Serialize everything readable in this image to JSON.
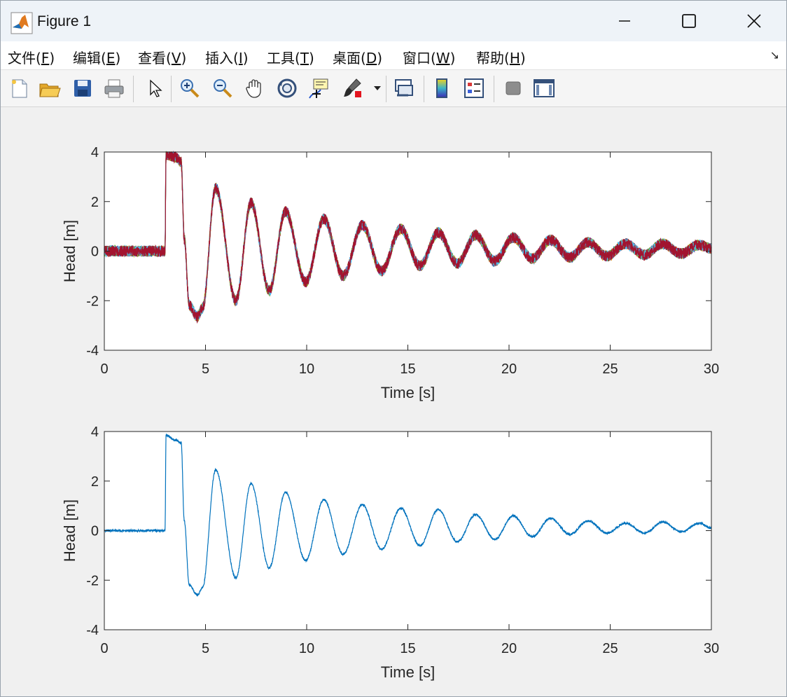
{
  "window": {
    "title": "Figure 1",
    "icon": "matlab-logo-icon",
    "controls": [
      "minimize-icon",
      "maximize-icon",
      "close-icon"
    ]
  },
  "menu": [
    {
      "label": "文件(",
      "accel": "F",
      "tail": ")"
    },
    {
      "label": "编辑(",
      "accel": "E",
      "tail": ")"
    },
    {
      "label": "查看(",
      "accel": "V",
      "tail": ")"
    },
    {
      "label": "插入(",
      "accel": "I",
      "tail": ")"
    },
    {
      "label": "工具(",
      "accel": "T",
      "tail": ")"
    },
    {
      "label": "桌面(",
      "accel": "D",
      "tail": ")"
    },
    {
      "label": "窗口(",
      "accel": "W",
      "tail": ")"
    },
    {
      "label": "帮助(",
      "accel": "H",
      "tail": ")"
    }
  ],
  "toolbar": [
    "new-figure-icon",
    "open-file-icon",
    "save-icon",
    "print-icon",
    "pointer-icon",
    "zoom-in-icon",
    "zoom-out-icon",
    "pan-hand-icon",
    "rotate-3d-icon",
    "data-cursor-icon",
    "brush-icon",
    "brush-dropdown-icon",
    "link-plot-icon",
    "colorbar-icon",
    "legend-icon",
    "hide-plot-tools-icon",
    "show-plot-tools-icon"
  ],
  "chart_data": [
    {
      "type": "line",
      "title": "",
      "xlabel": "Time [s]",
      "ylabel": "Head [m]",
      "xlim": [
        0,
        30
      ],
      "ylim": [
        -4,
        4
      ],
      "xticks": [
        0,
        5,
        10,
        15,
        20,
        25,
        30
      ],
      "yticks": [
        -4,
        -2,
        0,
        2,
        4
      ],
      "grid": false,
      "legend": "none",
      "colors": [
        "#0072BD",
        "#D95319",
        "#EDB120",
        "#7E2F8E",
        "#77AC30",
        "#4DBEEE",
        "#A2142F"
      ],
      "noise_amplitude": 0.22,
      "series_points": [
        [
          0,
          0.0
        ],
        [
          3.0,
          0.0
        ],
        [
          3.05,
          3.9
        ],
        [
          3.5,
          3.8
        ],
        [
          3.8,
          3.6
        ],
        [
          3.95,
          0.5
        ],
        [
          4.2,
          -2.2
        ],
        [
          4.6,
          -2.65
        ],
        [
          4.85,
          -2.3
        ],
        [
          5.5,
          2.55
        ],
        [
          6.5,
          -2.0
        ],
        [
          7.25,
          1.95
        ],
        [
          8.15,
          -1.6
        ],
        [
          8.95,
          1.6
        ],
        [
          9.95,
          -1.25
        ],
        [
          10.85,
          1.3
        ],
        [
          11.8,
          -1.0
        ],
        [
          12.75,
          1.05
        ],
        [
          13.7,
          -0.8
        ],
        [
          14.65,
          0.9
        ],
        [
          15.6,
          -0.6
        ],
        [
          16.5,
          0.75
        ],
        [
          17.45,
          -0.5
        ],
        [
          18.35,
          0.65
        ],
        [
          19.3,
          -0.4
        ],
        [
          20.2,
          0.55
        ],
        [
          21.15,
          -0.3
        ],
        [
          22.05,
          0.45
        ],
        [
          23.0,
          -0.25
        ],
        [
          23.9,
          0.35
        ],
        [
          24.85,
          -0.2
        ],
        [
          25.75,
          0.3
        ],
        [
          26.7,
          -0.15
        ],
        [
          27.6,
          0.3
        ],
        [
          28.5,
          -0.1
        ],
        [
          29.4,
          0.25
        ],
        [
          30,
          0.1
        ]
      ]
    },
    {
      "type": "line",
      "title": "",
      "xlabel": "Time [s]",
      "ylabel": "Head [m]",
      "xlim": [
        0,
        30
      ],
      "ylim": [
        -4,
        4
      ],
      "xticks": [
        0,
        5,
        10,
        15,
        20,
        25,
        30
      ],
      "yticks": [
        -4,
        -2,
        0,
        2,
        4
      ],
      "grid": false,
      "legend": "none",
      "colors": [
        "#0072BD"
      ],
      "noise_amplitude": 0.04,
      "series_points": [
        [
          0,
          0.0
        ],
        [
          3.0,
          0.0
        ],
        [
          3.05,
          3.85
        ],
        [
          3.5,
          3.65
        ],
        [
          3.8,
          3.55
        ],
        [
          3.95,
          0.4
        ],
        [
          4.2,
          -2.2
        ],
        [
          4.6,
          -2.6
        ],
        [
          4.85,
          -2.3
        ],
        [
          5.5,
          2.45
        ],
        [
          6.5,
          -1.9
        ],
        [
          7.25,
          1.9
        ],
        [
          8.15,
          -1.5
        ],
        [
          8.95,
          1.55
        ],
        [
          9.95,
          -1.2
        ],
        [
          10.85,
          1.25
        ],
        [
          11.8,
          -0.95
        ],
        [
          12.75,
          1.05
        ],
        [
          13.7,
          -0.75
        ],
        [
          14.65,
          0.9
        ],
        [
          15.6,
          -0.6
        ],
        [
          16.5,
          0.85
        ],
        [
          17.45,
          -0.45
        ],
        [
          18.35,
          0.65
        ],
        [
          19.3,
          -0.35
        ],
        [
          20.2,
          0.6
        ],
        [
          21.15,
          -0.25
        ],
        [
          22.05,
          0.5
        ],
        [
          23.0,
          -0.15
        ],
        [
          23.9,
          0.4
        ],
        [
          24.85,
          -0.1
        ],
        [
          25.75,
          0.3
        ],
        [
          26.7,
          -0.1
        ],
        [
          27.6,
          0.35
        ],
        [
          28.5,
          -0.05
        ],
        [
          29.4,
          0.3
        ],
        [
          30,
          0.1
        ]
      ]
    }
  ]
}
